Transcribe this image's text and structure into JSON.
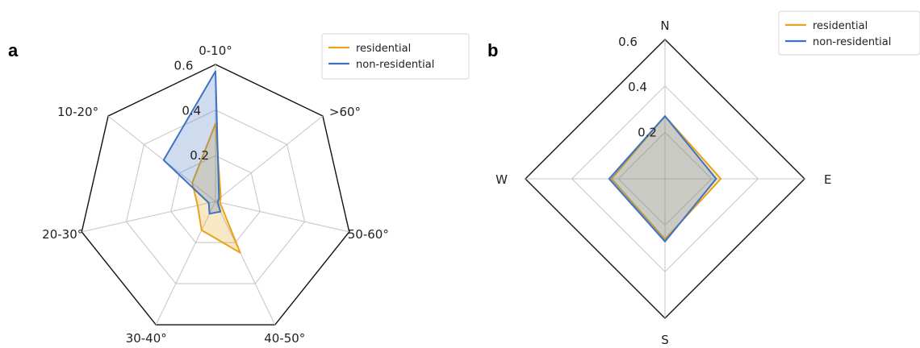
{
  "chart_data": [
    {
      "type": "radar",
      "panel_label": "a",
      "categories": [
        "0-10°",
        ">60°",
        "50-60°",
        "40-50°",
        "30-40°",
        "20-30°",
        "10-20°"
      ],
      "rlim": [
        0,
        0.6
      ],
      "rticks": [
        0.2,
        0.4,
        0.6
      ],
      "rtick_labels": [
        "0.2",
        "0.4",
        "0.6"
      ],
      "grid": true,
      "legend_position": "top-right",
      "series": [
        {
          "name": "residential",
          "color": "#e8a317",
          "values": [
            0.34,
            0.03,
            0.02,
            0.25,
            0.14,
            0.08,
            0.13
          ]
        },
        {
          "name": "non-residential",
          "color": "#3e73c4",
          "values": [
            0.57,
            0.02,
            0.01,
            0.05,
            0.06,
            0.03,
            0.29
          ]
        }
      ]
    },
    {
      "type": "radar",
      "panel_label": "b",
      "categories": [
        "N",
        "E",
        "S",
        "W"
      ],
      "rlim": [
        0,
        0.6
      ],
      "rticks": [
        0.2,
        0.4,
        0.6
      ],
      "rtick_labels": [
        "0.2",
        "0.4",
        "0.6"
      ],
      "grid": true,
      "legend_position": "top-right",
      "series": [
        {
          "name": "residential",
          "color": "#e8a317",
          "values": [
            0.27,
            0.24,
            0.26,
            0.23
          ]
        },
        {
          "name": "non-residential",
          "color": "#3e73c4",
          "values": [
            0.27,
            0.22,
            0.27,
            0.24
          ]
        }
      ]
    }
  ]
}
